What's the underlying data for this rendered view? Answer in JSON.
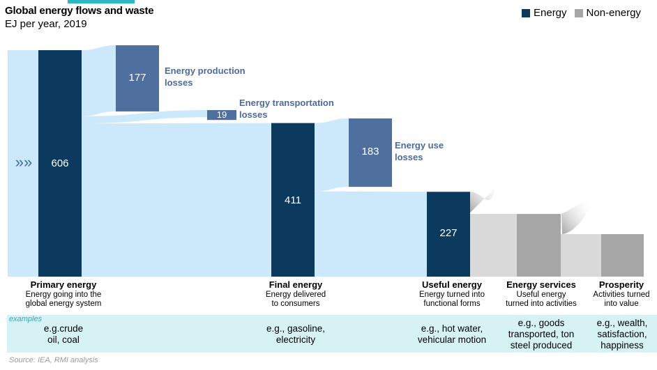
{
  "header": {
    "title": "Global energy flows and waste",
    "subtitle": "EJ per year, 2019"
  },
  "legend": [
    {
      "label": "Energy",
      "color": "#0b3a5e"
    },
    {
      "label": "Non-energy",
      "color": "#a6a6a6"
    }
  ],
  "colors": {
    "energy": "#0b3a5e",
    "loss": "#4f6f9f",
    "flow": "#cce8fb",
    "non_energy": "#a6a6a6",
    "non_energy_flow": "#d9d9d9",
    "loss_text": "#4a6b9e",
    "accent": "#2db7c3",
    "examples_band": "#d7f2f5"
  },
  "chart_data": {
    "type": "sankey",
    "title": "Global energy flows and waste",
    "subtitle": "EJ per year, 2019",
    "units": "EJ per year",
    "nodes": [
      {
        "id": "primary",
        "value": 606,
        "value_label": "606",
        "kind": "energy"
      },
      {
        "id": "production_losses",
        "value": 177,
        "value_label": "177",
        "kind": "loss",
        "label": "Energy production losses"
      },
      {
        "id": "transport_losses",
        "value": 19,
        "value_label": "19",
        "kind": "loss",
        "label": "Energy transportation losses"
      },
      {
        "id": "final",
        "value": 411,
        "value_label": "411",
        "kind": "energy"
      },
      {
        "id": "use_losses",
        "value": 183,
        "value_label": "183",
        "kind": "loss",
        "label": "Energy use losses"
      },
      {
        "id": "useful",
        "value": 227,
        "value_label": "227",
        "kind": "energy"
      },
      {
        "id": "services",
        "kind": "non-energy"
      },
      {
        "id": "prosperity",
        "kind": "non-energy"
      }
    ],
    "links": [
      {
        "from": "primary",
        "to": "production_losses",
        "value": 177
      },
      {
        "from": "primary",
        "to": "transport_losses",
        "value": 19
      },
      {
        "from": "primary",
        "to": "final",
        "value": 411
      },
      {
        "from": "final",
        "to": "use_losses",
        "value": 183
      },
      {
        "from": "final",
        "to": "useful",
        "value": 227
      }
    ],
    "input_arrow": "»",
    "stages": [
      {
        "name": "Primary energy",
        "desc_lines": [
          "Energy going into the",
          "global energy system"
        ],
        "examples_lines": [
          "e.g.crude",
          "oil, coal"
        ]
      },
      {
        "name": "Final energy",
        "desc_lines": [
          "Energy delivered",
          "to consumers"
        ],
        "examples_lines": [
          "e.g., gasoline,",
          "electricity"
        ]
      },
      {
        "name": "Useful energy",
        "desc_lines": [
          "Energy turned into",
          "functional forms"
        ],
        "examples_lines": [
          "e.g., hot water,",
          "vehicular motion"
        ]
      },
      {
        "name": "Energy services",
        "desc_lines": [
          "Useful energy",
          "turned into activities"
        ],
        "examples_lines": [
          "e.g., goods",
          "transported, ton",
          "steel produced"
        ]
      },
      {
        "name": "Prosperity",
        "desc_lines": [
          "Activities turned",
          "into value"
        ],
        "examples_lines": [
          "e.g., wealth,",
          "satisfaction,",
          "happiness"
        ]
      }
    ],
    "examples_label": "examples",
    "source": "Source: IEA, RMI analysis"
  }
}
